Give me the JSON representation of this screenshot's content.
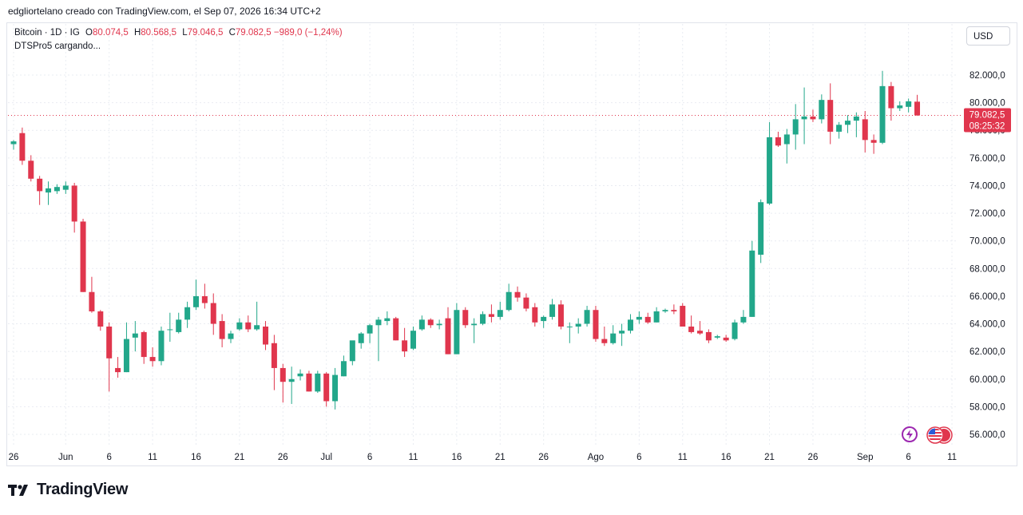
{
  "header": {
    "attribution": "edgliortelano creado con TradingView.com, el Sep 07, 2026 16:34 UTC+2"
  },
  "legend": {
    "symbol": "Bitcoin · 1D · IG",
    "open_label": "O",
    "open": "80.074,5",
    "high_label": "H",
    "high": "80.568,5",
    "low_label": "L",
    "low": "79.046,5",
    "close_label": "C",
    "close": "79.082,5",
    "change": "−989,0 (−1,24%)",
    "indicator": "DTSPro5 cargando..."
  },
  "currency_button": "USD",
  "price_label": {
    "price": "79.082,5",
    "countdown": "08:25:32"
  },
  "brand": {
    "name": "TradingView"
  },
  "icons": {
    "bolt": "lightning-icon",
    "flags": "us-flag-events-icon"
  },
  "colors": {
    "up": "#22a78a",
    "down": "#e0364d",
    "grid": "#e9ecf2",
    "text": "#131722"
  },
  "chart_data": {
    "type": "candlestick",
    "title": "Bitcoin · 1D · IG",
    "ylim": [
      55000,
      83500
    ],
    "y_ticks": [
      56000,
      58000,
      60000,
      62000,
      64000,
      66000,
      68000,
      70000,
      72000,
      74000,
      76000,
      78000,
      80000,
      82000
    ],
    "y_tick_labels": [
      "56.000,0",
      "58.000,0",
      "60.000,0",
      "62.000,0",
      "64.000,0",
      "66.000,0",
      "68.000,0",
      "70.000,0",
      "72.000,0",
      "74.000,0",
      "76.000,0",
      "78.000,0",
      "80.000,0",
      "82.000,0"
    ],
    "x_tick_labels": [
      "26",
      "Jun",
      "6",
      "11",
      "16",
      "21",
      "26",
      "Jul",
      "6",
      "11",
      "16",
      "21",
      "26",
      "Ago",
      "6",
      "11",
      "16",
      "21",
      "26",
      "Sep",
      "6",
      "11"
    ],
    "x_tick_days": [
      0,
      6,
      11,
      16,
      21,
      26,
      31,
      36,
      41,
      46,
      51,
      56,
      61,
      67,
      72,
      77,
      82,
      87,
      92,
      98,
      103,
      108
    ],
    "last_price": 79082.5,
    "grid": true,
    "candles": [
      {
        "o": 77000,
        "h": 77300,
        "l": 76600,
        "c": 77200
      },
      {
        "o": 77800,
        "h": 78200,
        "l": 75500,
        "c": 75800
      },
      {
        "o": 75800,
        "h": 76200,
        "l": 74300,
        "c": 74500
      },
      {
        "o": 74500,
        "h": 74700,
        "l": 72600,
        "c": 73600
      },
      {
        "o": 73500,
        "h": 74300,
        "l": 72600,
        "c": 73800
      },
      {
        "o": 73600,
        "h": 74100,
        "l": 73400,
        "c": 73900
      },
      {
        "o": 73700,
        "h": 74300,
        "l": 73400,
        "c": 74000
      },
      {
        "o": 74000,
        "h": 74200,
        "l": 70600,
        "c": 71400
      },
      {
        "o": 71400,
        "h": 71600,
        "l": 66300,
        "c": 66300
      },
      {
        "o": 66300,
        "h": 67400,
        "l": 64800,
        "c": 64900
      },
      {
        "o": 64900,
        "h": 65000,
        "l": 63500,
        "c": 63800
      },
      {
        "o": 63800,
        "h": 64100,
        "l": 59100,
        "c": 61500
      },
      {
        "o": 60800,
        "h": 61600,
        "l": 60100,
        "c": 60500
      },
      {
        "o": 60500,
        "h": 64100,
        "l": 60500,
        "c": 62900
      },
      {
        "o": 63000,
        "h": 64200,
        "l": 62000,
        "c": 63300
      },
      {
        "o": 63400,
        "h": 63500,
        "l": 61100,
        "c": 61600
      },
      {
        "o": 61600,
        "h": 62300,
        "l": 60900,
        "c": 61300
      },
      {
        "o": 61300,
        "h": 63800,
        "l": 61000,
        "c": 63500
      },
      {
        "o": 63600,
        "h": 64800,
        "l": 62700,
        "c": 63600
      },
      {
        "o": 63400,
        "h": 64800,
        "l": 63300,
        "c": 64300
      },
      {
        "o": 64300,
        "h": 65600,
        "l": 63700,
        "c": 65200
      },
      {
        "o": 65200,
        "h": 67200,
        "l": 65000,
        "c": 66000
      },
      {
        "o": 66000,
        "h": 66900,
        "l": 65100,
        "c": 65500
      },
      {
        "o": 65500,
        "h": 66200,
        "l": 63200,
        "c": 64000
      },
      {
        "o": 64200,
        "h": 64700,
        "l": 62300,
        "c": 62900
      },
      {
        "o": 62900,
        "h": 63500,
        "l": 62600,
        "c": 63300
      },
      {
        "o": 63600,
        "h": 64400,
        "l": 63500,
        "c": 64100
      },
      {
        "o": 64100,
        "h": 64600,
        "l": 63400,
        "c": 63600
      },
      {
        "o": 63600,
        "h": 65600,
        "l": 63500,
        "c": 63900
      },
      {
        "o": 63800,
        "h": 64200,
        "l": 62100,
        "c": 62500
      },
      {
        "o": 62600,
        "h": 63200,
        "l": 59200,
        "c": 60800
      },
      {
        "o": 60800,
        "h": 61100,
        "l": 58300,
        "c": 59800
      },
      {
        "o": 59800,
        "h": 60900,
        "l": 58200,
        "c": 60000
      },
      {
        "o": 60200,
        "h": 60700,
        "l": 59900,
        "c": 60400
      },
      {
        "o": 60400,
        "h": 60600,
        "l": 59100,
        "c": 59100
      },
      {
        "o": 59100,
        "h": 60600,
        "l": 59000,
        "c": 60400
      },
      {
        "o": 60400,
        "h": 60500,
        "l": 58000,
        "c": 58400
      },
      {
        "o": 58400,
        "h": 60800,
        "l": 57800,
        "c": 60300
      },
      {
        "o": 60200,
        "h": 61700,
        "l": 60200,
        "c": 61300
      },
      {
        "o": 61300,
        "h": 62600,
        "l": 61000,
        "c": 62800
      },
      {
        "o": 62600,
        "h": 63400,
        "l": 62200,
        "c": 63300
      },
      {
        "o": 63300,
        "h": 64000,
        "l": 62600,
        "c": 63900
      },
      {
        "o": 63900,
        "h": 64500,
        "l": 61300,
        "c": 64300
      },
      {
        "o": 64200,
        "h": 64900,
        "l": 63900,
        "c": 64400
      },
      {
        "o": 64400,
        "h": 64500,
        "l": 62800,
        "c": 62800
      },
      {
        "o": 62800,
        "h": 63700,
        "l": 61600,
        "c": 62000
      },
      {
        "o": 62200,
        "h": 63800,
        "l": 62100,
        "c": 63500
      },
      {
        "o": 63600,
        "h": 64600,
        "l": 63500,
        "c": 64300
      },
      {
        "o": 64300,
        "h": 64400,
        "l": 63700,
        "c": 63900
      },
      {
        "o": 63900,
        "h": 64300,
        "l": 63600,
        "c": 64000
      },
      {
        "o": 64400,
        "h": 65200,
        "l": 61800,
        "c": 61800
      },
      {
        "o": 61800,
        "h": 65500,
        "l": 61800,
        "c": 65000
      },
      {
        "o": 65000,
        "h": 65200,
        "l": 63700,
        "c": 63900
      },
      {
        "o": 63900,
        "h": 64400,
        "l": 62600,
        "c": 64000
      },
      {
        "o": 64000,
        "h": 64900,
        "l": 63900,
        "c": 64700
      },
      {
        "o": 64700,
        "h": 65400,
        "l": 64100,
        "c": 64500
      },
      {
        "o": 64500,
        "h": 65600,
        "l": 64300,
        "c": 65000
      },
      {
        "o": 65000,
        "h": 66900,
        "l": 64900,
        "c": 66300
      },
      {
        "o": 66300,
        "h": 66700,
        "l": 65600,
        "c": 65900
      },
      {
        "o": 65900,
        "h": 66200,
        "l": 64900,
        "c": 65100
      },
      {
        "o": 65200,
        "h": 65500,
        "l": 63800,
        "c": 64100
      },
      {
        "o": 64200,
        "h": 64600,
        "l": 63700,
        "c": 64500
      },
      {
        "o": 64500,
        "h": 65800,
        "l": 64300,
        "c": 65400
      },
      {
        "o": 65400,
        "h": 65700,
        "l": 63600,
        "c": 63800
      },
      {
        "o": 63800,
        "h": 64100,
        "l": 62600,
        "c": 63800
      },
      {
        "o": 63800,
        "h": 64400,
        "l": 63300,
        "c": 64000
      },
      {
        "o": 64000,
        "h": 65300,
        "l": 63800,
        "c": 65000
      },
      {
        "o": 65000,
        "h": 65300,
        "l": 62700,
        "c": 62900
      },
      {
        "o": 62900,
        "h": 63800,
        "l": 62400,
        "c": 62600
      },
      {
        "o": 62600,
        "h": 63900,
        "l": 62500,
        "c": 63300
      },
      {
        "o": 63300,
        "h": 64000,
        "l": 62400,
        "c": 63500
      },
      {
        "o": 63500,
        "h": 64700,
        "l": 63300,
        "c": 64300
      },
      {
        "o": 64300,
        "h": 64900,
        "l": 64000,
        "c": 64500
      },
      {
        "o": 64500,
        "h": 64800,
        "l": 64000,
        "c": 64100
      },
      {
        "o": 64100,
        "h": 65200,
        "l": 64100,
        "c": 64900
      },
      {
        "o": 64900,
        "h": 65100,
        "l": 64800,
        "c": 65000
      },
      {
        "o": 65000,
        "h": 65400,
        "l": 64700,
        "c": 64900
      },
      {
        "o": 65300,
        "h": 65500,
        "l": 63800,
        "c": 63800
      },
      {
        "o": 63800,
        "h": 64600,
        "l": 63300,
        "c": 63400
      },
      {
        "o": 63500,
        "h": 64200,
        "l": 63200,
        "c": 63300
      },
      {
        "o": 63400,
        "h": 63600,
        "l": 62600,
        "c": 62800
      },
      {
        "o": 63000,
        "h": 63200,
        "l": 62900,
        "c": 63100
      },
      {
        "o": 63000,
        "h": 63200,
        "l": 62700,
        "c": 62800
      },
      {
        "o": 62900,
        "h": 64300,
        "l": 62800,
        "c": 64100
      },
      {
        "o": 64100,
        "h": 65000,
        "l": 64000,
        "c": 64500
      },
      {
        "o": 64500,
        "h": 70000,
        "l": 64500,
        "c": 69300
      },
      {
        "o": 69000,
        "h": 73000,
        "l": 68400,
        "c": 72800
      },
      {
        "o": 72700,
        "h": 78600,
        "l": 72600,
        "c": 77500
      },
      {
        "o": 77500,
        "h": 77900,
        "l": 76800,
        "c": 76900
      },
      {
        "o": 77000,
        "h": 78100,
        "l": 75600,
        "c": 77700
      },
      {
        "o": 77700,
        "h": 79900,
        "l": 76600,
        "c": 78800
      },
      {
        "o": 78800,
        "h": 81100,
        "l": 77000,
        "c": 79000
      },
      {
        "o": 79000,
        "h": 79500,
        "l": 78600,
        "c": 78800
      },
      {
        "o": 78800,
        "h": 80600,
        "l": 78500,
        "c": 80200
      },
      {
        "o": 80200,
        "h": 81400,
        "l": 77000,
        "c": 77900
      },
      {
        "o": 77900,
        "h": 78600,
        "l": 77400,
        "c": 78400
      },
      {
        "o": 78400,
        "h": 79100,
        "l": 77800,
        "c": 78700
      },
      {
        "o": 78700,
        "h": 79300,
        "l": 77500,
        "c": 79000
      },
      {
        "o": 78800,
        "h": 79400,
        "l": 76400,
        "c": 77300
      },
      {
        "o": 77300,
        "h": 77700,
        "l": 76300,
        "c": 77100
      },
      {
        "o": 77100,
        "h": 82300,
        "l": 77000,
        "c": 81200
      },
      {
        "o": 81200,
        "h": 81500,
        "l": 78700,
        "c": 79600
      },
      {
        "o": 79600,
        "h": 80100,
        "l": 79400,
        "c": 79800
      },
      {
        "o": 79700,
        "h": 80300,
        "l": 79300,
        "c": 80100
      },
      {
        "o": 80074.5,
        "h": 80568.5,
        "l": 79046.5,
        "c": 79082.5
      }
    ]
  }
}
